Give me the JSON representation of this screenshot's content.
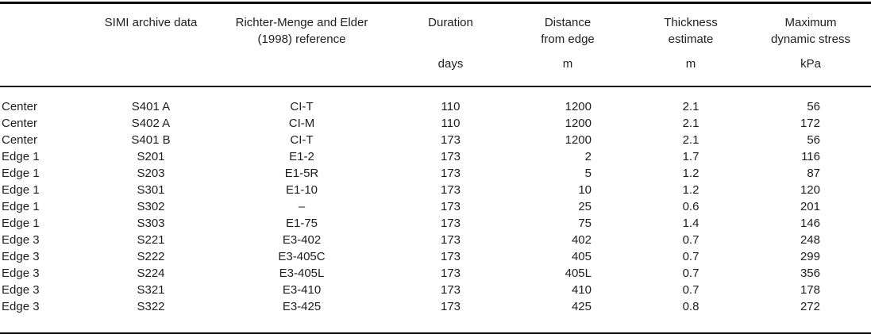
{
  "table": {
    "columns": [
      {
        "line1": "",
        "line2": "",
        "unit": ""
      },
      {
        "line1": "SIMI archive data",
        "line2": "",
        "unit": ""
      },
      {
        "line1": "Richter-Menge and Elder",
        "line2": "(1998) reference",
        "unit": ""
      },
      {
        "line1": "Duration",
        "line2": "",
        "unit": "days"
      },
      {
        "line1": "Distance",
        "line2": "from edge",
        "unit": "m"
      },
      {
        "line1": "Thickness",
        "line2": "estimate",
        "unit": "m"
      },
      {
        "line1": "Maximum",
        "line2": "dynamic stress",
        "unit": "kPa"
      }
    ],
    "rows": [
      [
        "Center",
        "S401 A",
        "CI-T",
        "110",
        "1200",
        "2.1",
        "56"
      ],
      [
        "Center",
        "S402 A",
        "CI-M",
        "110",
        "1200",
        "2.1",
        "172"
      ],
      [
        "Center",
        "S401 B",
        "CI-T",
        "173",
        "1200",
        "2.1",
        "56"
      ],
      [
        "Edge 1",
        "S201",
        "E1-2",
        "173",
        "2",
        "1.7",
        "116"
      ],
      [
        "Edge 1",
        "S203",
        "E1-5R",
        "173",
        "5",
        "1.2",
        "87"
      ],
      [
        "Edge 1",
        "S301",
        "E1-10",
        "173",
        "10",
        "1.2",
        "120"
      ],
      [
        "Edge 1",
        "S302",
        "–",
        "173",
        "25",
        "0.6",
        "201"
      ],
      [
        "Edge 1",
        "S303",
        "E1-75",
        "173",
        "75",
        "1.4",
        "146"
      ],
      [
        "Edge 3",
        "S221",
        "E3-402",
        "173",
        "402",
        "0.7",
        "248"
      ],
      [
        "Edge 3",
        "S222",
        "E3-405C",
        "173",
        "405",
        "0.7",
        "299"
      ],
      [
        "Edge 3",
        "S224",
        "E3-405L",
        "173",
        "405L",
        "0.7",
        "356"
      ],
      [
        "Edge 3",
        "S321",
        "E3-410",
        "173",
        "410",
        "0.7",
        "178"
      ],
      [
        "Edge 3",
        "S322",
        "E3-425",
        "173",
        "425",
        "0.8",
        "272"
      ]
    ],
    "text_color": "#1e1e1e",
    "rule_color": "#0a0a0a"
  }
}
